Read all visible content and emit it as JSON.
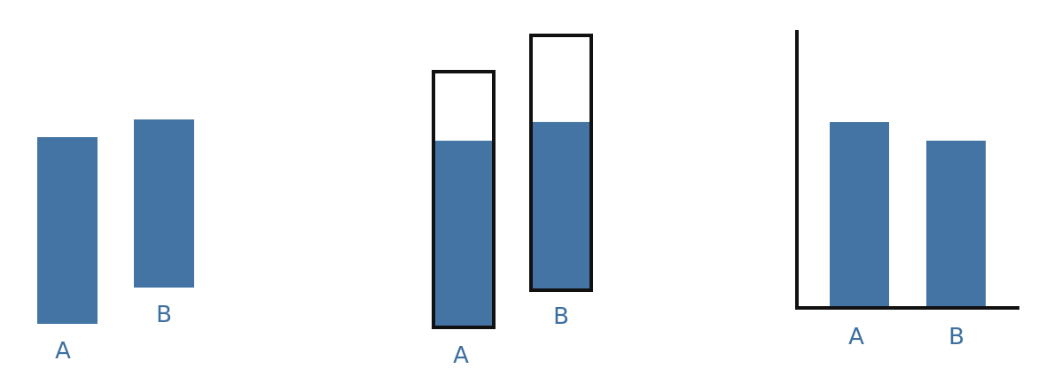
{
  "colors": {
    "bar_fill": "#4374a3",
    "label": "#3d6f9f",
    "outline": "#111111",
    "axis": "#111111"
  },
  "panels": [
    {
      "name": "floating-bars",
      "bars": [
        {
          "label": "A"
        },
        {
          "label": "B"
        }
      ]
    },
    {
      "name": "container-bars",
      "bars": [
        {
          "label": "A",
          "fill_fraction": 0.73
        },
        {
          "label": "B",
          "fill_fraction": 0.66
        }
      ]
    },
    {
      "name": "axis-bars",
      "bars": [
        {
          "label": "A"
        },
        {
          "label": "B"
        }
      ]
    }
  ]
}
